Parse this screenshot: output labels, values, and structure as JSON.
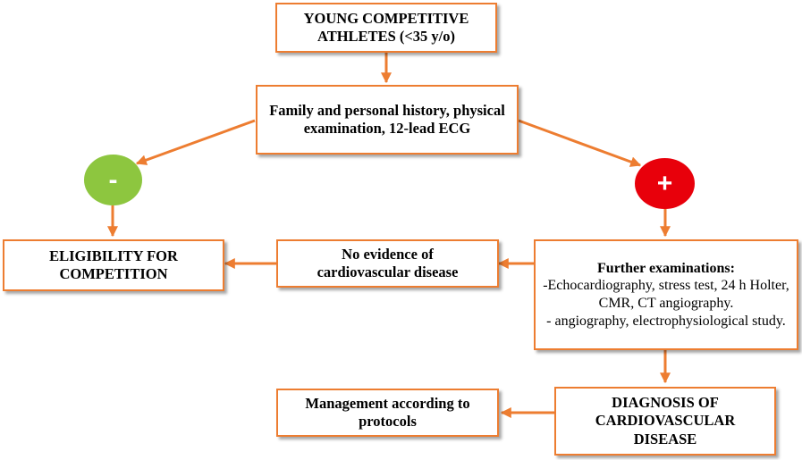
{
  "nodes": {
    "young_athletes": {
      "text": "YOUNG COMPETITIVE ATHLETES (<35 y/o)"
    },
    "screening": {
      "text": "Family and personal history, physical examination, 12-lead ECG"
    },
    "negative": {
      "symbol": "-",
      "color": "#8DC63F"
    },
    "positive": {
      "symbol": "+",
      "color": "#E8000B"
    },
    "eligibility": {
      "text": "ELIGIBILITY FOR COMPETITION"
    },
    "no_evidence": {
      "text": "No evidence of cardiovascular disease"
    },
    "further_exams": {
      "title": "Further examinations:",
      "line1": "-Echocardiography, stress test, 24 h Holter, CMR, CT angiography.",
      "line2": "- angiography, electrophysiological study."
    },
    "diagnosis": {
      "text": "DIAGNOSIS OF CARDIOVASCULAR DISEASE"
    },
    "management": {
      "text": "Management according to protocols"
    }
  },
  "colors": {
    "accent": "#ED7D31",
    "text": "#000000"
  }
}
